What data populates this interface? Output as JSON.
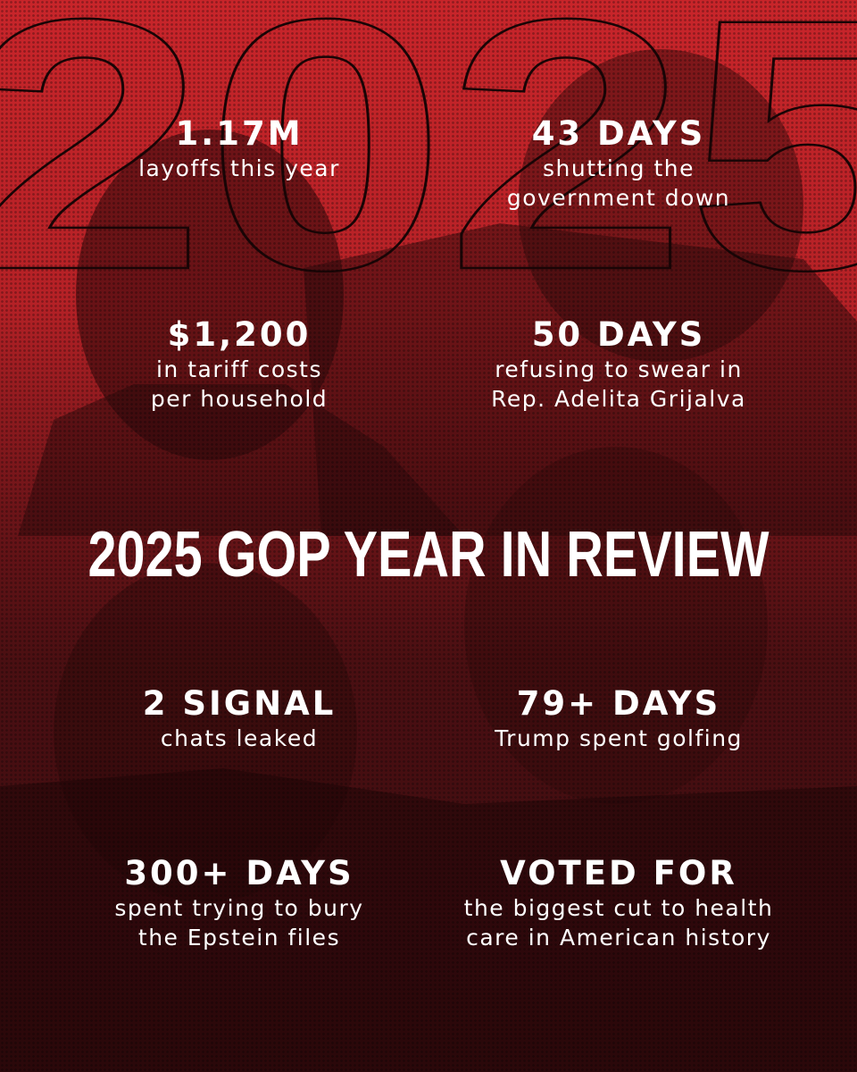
{
  "background_year_text": "2025",
  "headline": "2025 GOP YEAR IN REVIEW",
  "stats": [
    {
      "big": "1.17M",
      "lines": [
        "layoffs this year"
      ]
    },
    {
      "big": "43 DAYS",
      "lines": [
        "shutting the",
        "government down"
      ]
    },
    {
      "big": "$1,200",
      "lines": [
        "in tariff costs",
        "per household"
      ]
    },
    {
      "big": "50 DAYS",
      "lines": [
        "refusing to swear in",
        "Rep. Adelita Grijalva"
      ]
    },
    {
      "big": "2 SIGNAL",
      "lines": [
        "chats leaked"
      ]
    },
    {
      "big": "79+ DAYS",
      "lines": [
        "Trump spent golfing"
      ]
    },
    {
      "big": "300+ DAYS",
      "lines": [
        "spent trying to bury",
        "the Epstein files"
      ]
    },
    {
      "big": "VOTED FOR",
      "lines": [
        "the biggest cut to health",
        "care in American history"
      ]
    }
  ],
  "colors": {
    "primary_red": "#c8252a",
    "dark_maroon": "#3a0c0f",
    "text": "#ffffff"
  }
}
